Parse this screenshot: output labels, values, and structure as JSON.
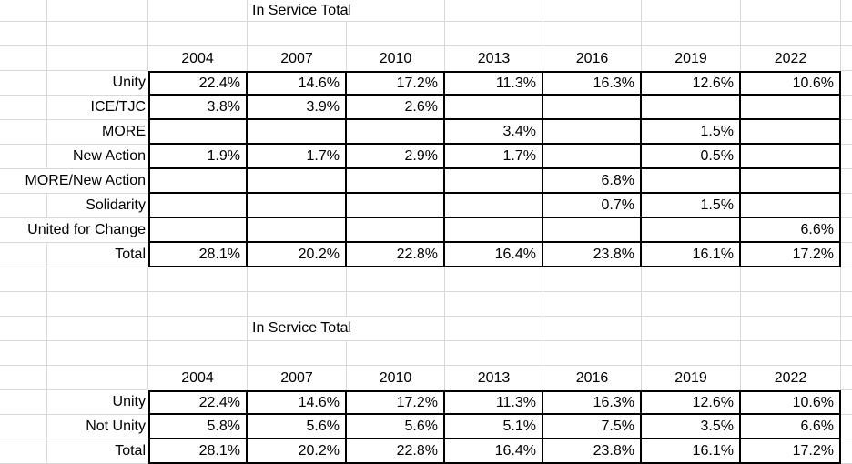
{
  "sheet": {
    "title1": "In Service Total",
    "title2": "In Service Total",
    "years": [
      "2004",
      "2007",
      "2010",
      "2013",
      "2016",
      "2019",
      "2022"
    ],
    "table1": {
      "rows": [
        {
          "label": "Unity",
          "values": [
            "22.4%",
            "14.6%",
            "17.2%",
            "11.3%",
            "16.3%",
            "12.6%",
            "10.6%"
          ]
        },
        {
          "label": "ICE/TJC",
          "values": [
            "3.8%",
            "3.9%",
            "2.6%",
            "",
            "",
            "",
            ""
          ]
        },
        {
          "label": "MORE",
          "values": [
            "",
            "",
            "",
            "3.4%",
            "",
            "1.5%",
            ""
          ]
        },
        {
          "label": "New Action",
          "values": [
            "1.9%",
            "1.7%",
            "2.9%",
            "1.7%",
            "",
            "0.5%",
            ""
          ]
        },
        {
          "label": "MORE/New Action",
          "span2": true,
          "values": [
            "",
            "",
            "",
            "",
            "6.8%",
            "",
            ""
          ]
        },
        {
          "label": "Solidarity",
          "values": [
            "",
            "",
            "",
            "",
            "0.7%",
            "1.5%",
            ""
          ]
        },
        {
          "label": "United for Change",
          "span2": true,
          "values": [
            "",
            "",
            "",
            "",
            "",
            "",
            "6.6%"
          ]
        },
        {
          "label": "Total",
          "values": [
            "28.1%",
            "20.2%",
            "22.8%",
            "16.4%",
            "23.8%",
            "16.1%",
            "17.2%"
          ]
        }
      ]
    },
    "table2": {
      "rows": [
        {
          "label": "Unity",
          "values": [
            "22.4%",
            "14.6%",
            "17.2%",
            "11.3%",
            "16.3%",
            "12.6%",
            "10.6%"
          ]
        },
        {
          "label": "Not Unity",
          "values": [
            "5.8%",
            "5.6%",
            "5.6%",
            "5.1%",
            "7.5%",
            "3.5%",
            "6.6%"
          ]
        },
        {
          "label": "Total",
          "values": [
            "28.1%",
            "20.2%",
            "22.8%",
            "16.4%",
            "23.8%",
            "16.1%",
            "17.2%"
          ]
        }
      ]
    },
    "colors": {
      "background": "#ffffff",
      "gridline": "#d9d9d9",
      "table_border": "#000000",
      "text": "#000000"
    }
  }
}
